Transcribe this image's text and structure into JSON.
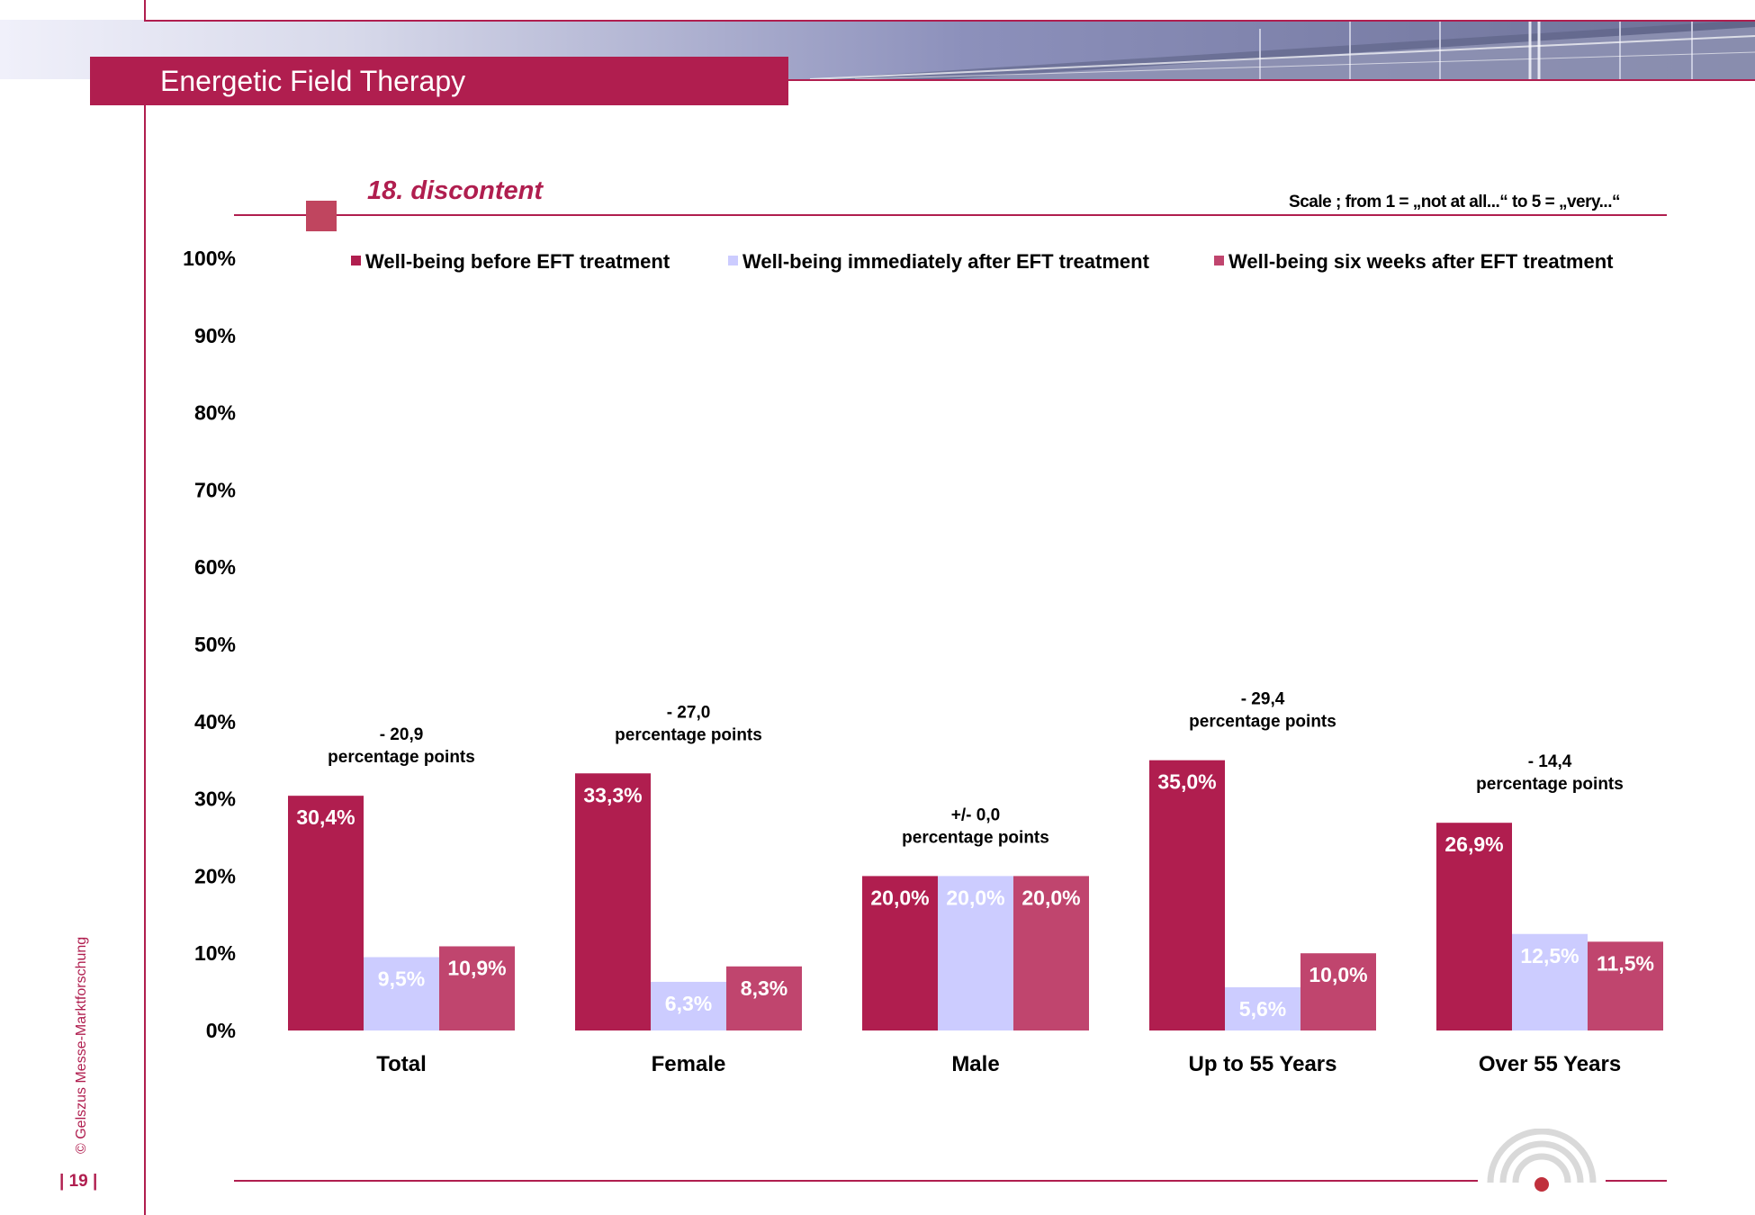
{
  "header": {
    "title": "Energetic Field Therapy"
  },
  "subtitle": "18. discontent",
  "scale_note": "Scale ; from 1 = „not at all...“  to 5 = „very...“",
  "footer": {
    "page_number": "| 19 |",
    "copyright": "© Gelszus Messe-Marktforschung"
  },
  "colors": {
    "accent": "#b01e4f",
    "before": "#b01e4f",
    "immediately": "#ccccff",
    "six_weeks": "#c0456e"
  },
  "chart_data": {
    "type": "bar",
    "categories": [
      "Total",
      "Female",
      "Male",
      "Up to 55 Years",
      "Over 55 Years"
    ],
    "series": [
      {
        "name": "Well-being before EFT treatment",
        "values": [
          30.4,
          33.3,
          20.0,
          35.0,
          26.9
        ],
        "labels": [
          "30,4%",
          "33,3%",
          "20,0%",
          "35,0%",
          "26,9%"
        ]
      },
      {
        "name": "Well-being immediately after EFT treatment",
        "values": [
          9.5,
          6.3,
          20.0,
          5.6,
          12.5
        ],
        "labels": [
          "9,5%",
          "6,3%",
          "20,0%",
          "5,6%",
          "12,5%"
        ]
      },
      {
        "name": "Well-being six weeks after EFT treatment",
        "values": [
          10.9,
          8.3,
          20.0,
          10.0,
          11.5
        ],
        "labels": [
          "10,9%",
          "8,3%",
          "20,0%",
          "10,0%",
          "11,5%"
        ]
      }
    ],
    "annotations": [
      {
        "line1": "- 20,9",
        "line2": "percentage points"
      },
      {
        "line1": "- 27,0",
        "line2": "percentage points"
      },
      {
        "line1": "+/- 0,0",
        "line2": "percentage points"
      },
      {
        "line1": "- 29,4",
        "line2": "percentage points"
      },
      {
        "line1": "- 14,4",
        "line2": "percentage points"
      }
    ],
    "yticks": [
      "0%",
      "10%",
      "20%",
      "30%",
      "40%",
      "50%",
      "60%",
      "70%",
      "80%",
      "90%",
      "100%"
    ],
    "ylim": [
      0,
      100
    ],
    "grid": false,
    "legend_position": "top"
  }
}
